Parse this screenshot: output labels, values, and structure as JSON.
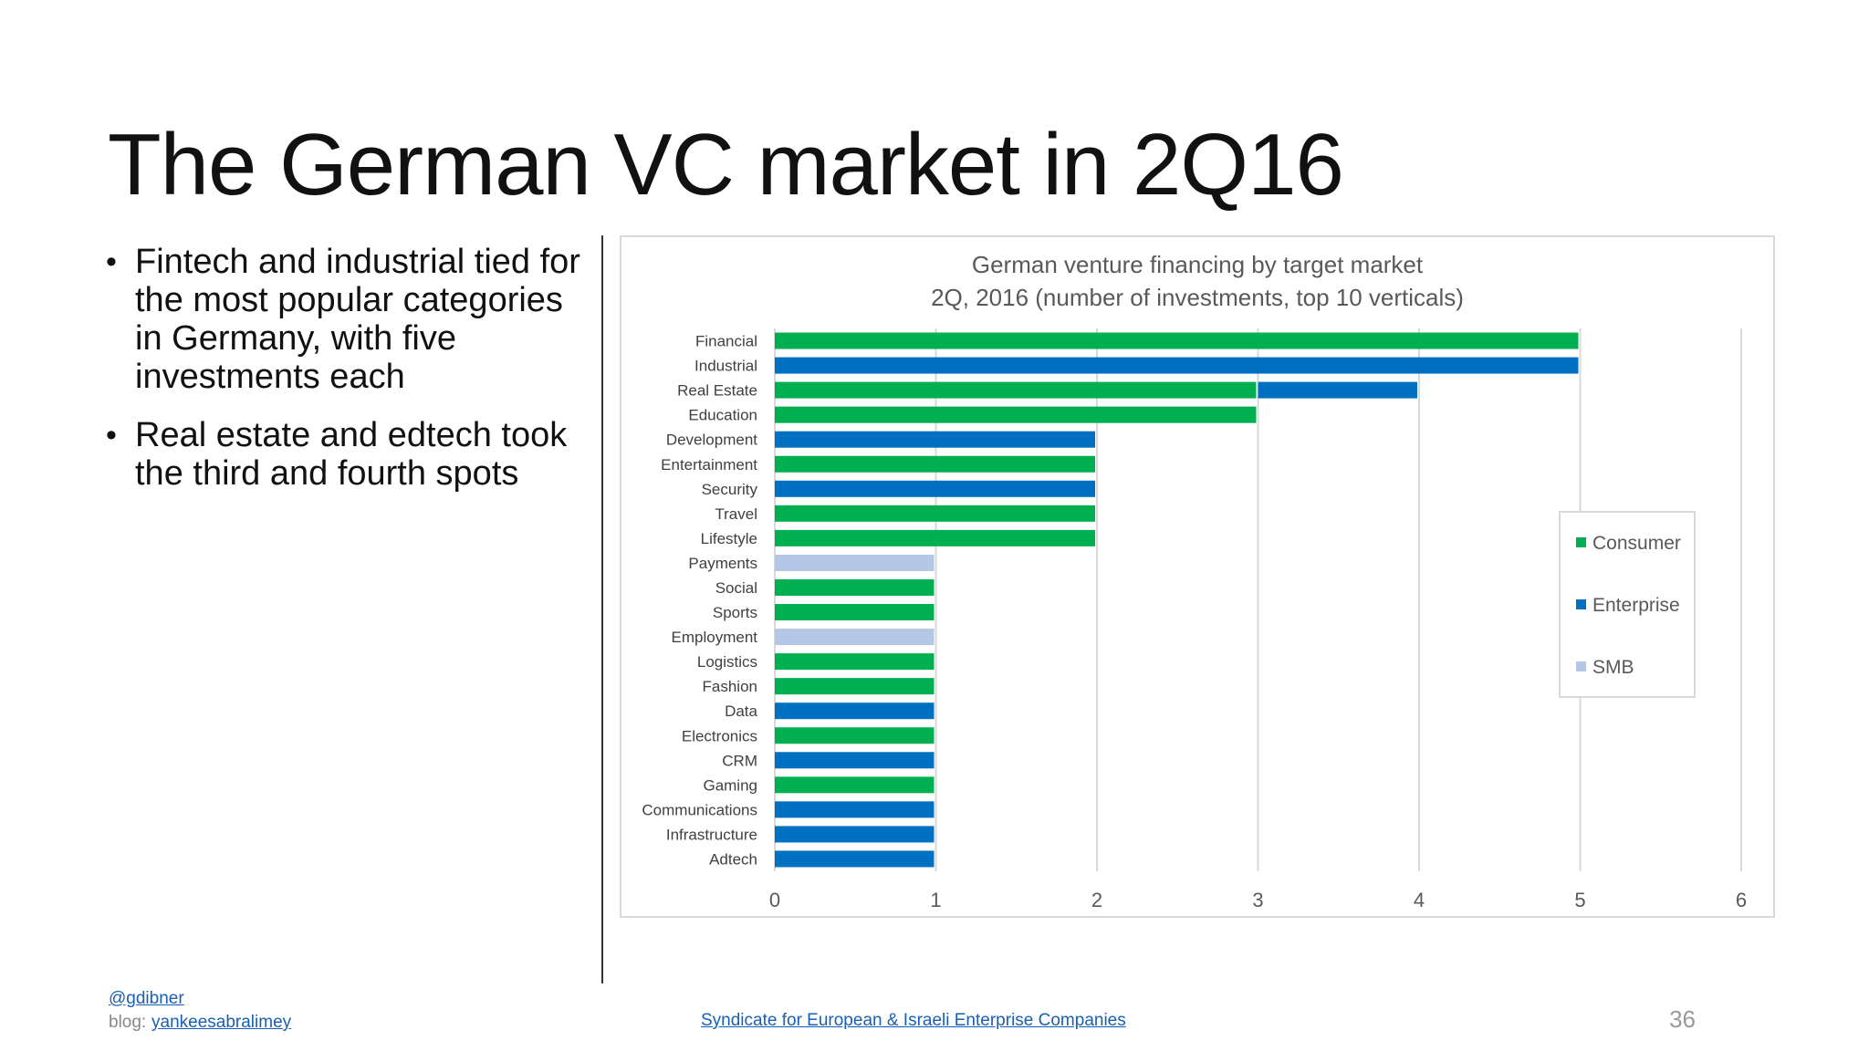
{
  "slide": {
    "title": "The German VC market in 2Q16",
    "bullets": [
      "Fintech and industrial tied for the most popular categories in Germany, with five investments each",
      "Real estate and edtech took the third and fourth spots"
    ],
    "page_number": "36"
  },
  "footer": {
    "handle": "@gdibner",
    "blog_label": "blog:",
    "blog_link": "yankeesabralimey",
    "center_link": "Syndicate for European & Israeli Enterprise Companies"
  },
  "colors": {
    "Consumer": "#00b050",
    "Enterprise": "#0070c0",
    "SMB": "#b4c7e7",
    "axis_text": "#595959",
    "gridline": "#d9d9d9"
  },
  "chart_data": {
    "type": "bar",
    "orientation": "horizontal",
    "stacked": true,
    "title": "German venture financing by target market",
    "subtitle": "2Q, 2016 (number of investments, top 10 verticals)",
    "categories": [
      "Financial",
      "Industrial",
      "Real Estate",
      "Education",
      "Development",
      "Entertainment",
      "Security",
      "Travel",
      "Lifestyle",
      "Payments",
      "Social",
      "Sports",
      "Employment",
      "Logistics",
      "Fashion",
      "Data",
      "Electronics",
      "CRM",
      "Gaming",
      "Communications",
      "Infrastructure",
      "Adtech"
    ],
    "series": [
      {
        "name": "Consumer",
        "values": [
          5,
          0,
          3,
          3,
          0,
          2,
          0,
          2,
          2,
          0,
          1,
          1,
          0,
          1,
          1,
          0,
          1,
          0,
          1,
          0,
          0,
          0
        ]
      },
      {
        "name": "Enterprise",
        "values": [
          0,
          5,
          1,
          0,
          2,
          0,
          2,
          0,
          0,
          0,
          0,
          0,
          0,
          0,
          0,
          1,
          0,
          1,
          0,
          1,
          1,
          1
        ]
      },
      {
        "name": "SMB",
        "values": [
          0,
          0,
          0,
          0,
          0,
          0,
          0,
          0,
          0,
          1,
          0,
          0,
          1,
          0,
          0,
          0,
          0,
          0,
          0,
          0,
          0,
          0
        ]
      }
    ],
    "xlim": [
      0,
      6
    ],
    "xticks": [
      0,
      1,
      2,
      3,
      4,
      5,
      6
    ],
    "grid": true,
    "legend": "right"
  }
}
